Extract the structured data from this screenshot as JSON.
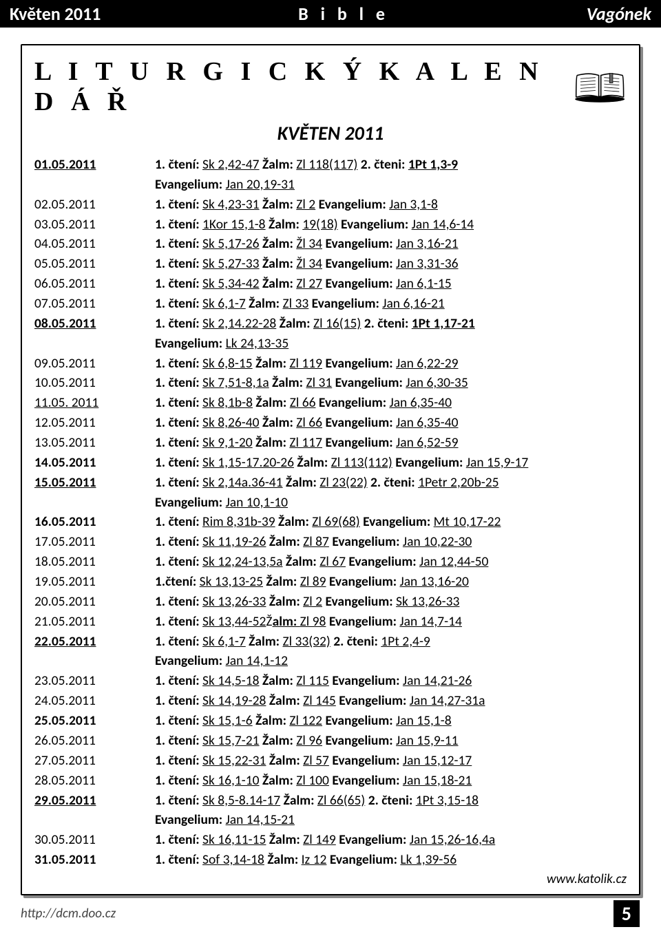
{
  "header": {
    "left": "Květen  2011",
    "center": "B i b l e",
    "right": "Vagónek"
  },
  "title": "L I T U R G I C K Ý   K A L E N D Á Ř",
  "subtitle": "KVĚTEN 2011",
  "source": "www.katolik.cz",
  "footer": {
    "url": "http://dcm.doo.cz",
    "page": "5"
  },
  "entries": [
    {
      "date": "01.05.2011",
      "bold": true,
      "under": true,
      "parts": [
        [
          "b",
          "1. čtení: "
        ],
        [
          "u",
          "Sk 2,42-47"
        ],
        [
          "b",
          " Žalm: "
        ],
        [
          "u",
          "Zl 118(117)"
        ],
        [
          "b",
          " 2. čteni: "
        ],
        [
          "bu",
          "1Pt 1,3-9"
        ]
      ],
      "cont": [
        [
          "b",
          "Evangelium: "
        ],
        [
          "u",
          "Jan 20,19-31"
        ]
      ]
    },
    {
      "date": "02.05.2011",
      "parts": [
        [
          "b",
          "1. čtení: "
        ],
        [
          "u",
          "Sk 4,23-31"
        ],
        [
          "b",
          " Žalm: "
        ],
        [
          "u",
          "Zl 2"
        ],
        [
          "b",
          " Evangelium: "
        ],
        [
          "u",
          "Jan 3,1-8"
        ]
      ]
    },
    {
      "date": "03.05.2011",
      "parts": [
        [
          "b",
          "1. čtení: "
        ],
        [
          "u",
          "1Kor 15,1-8"
        ],
        [
          "b",
          " Žalm: "
        ],
        [
          "u",
          "19(18)"
        ],
        [
          "b",
          " Evangelium: "
        ],
        [
          "u",
          "Jan 14,6-14"
        ]
      ]
    },
    {
      "date": "04.05.2011",
      "parts": [
        [
          "b",
          "1. čtení: "
        ],
        [
          "u",
          "Sk 5,17-26"
        ],
        [
          "b",
          " Žalm: "
        ],
        [
          "u",
          "Žl 34"
        ],
        [
          "b",
          " Evangelium: "
        ],
        [
          "u",
          "Jan 3,16-21"
        ]
      ]
    },
    {
      "date": "05.05.2011",
      "parts": [
        [
          "b",
          "1. čtení: "
        ],
        [
          "u",
          "Sk 5,27-33"
        ],
        [
          "b",
          " Žalm: "
        ],
        [
          "u",
          "Žl 34"
        ],
        [
          "b",
          " Evangelium: "
        ],
        [
          "u",
          "Jan 3,31-36"
        ]
      ]
    },
    {
      "date": "06.05.2011",
      "parts": [
        [
          "b",
          "1. čtení: "
        ],
        [
          "u",
          "Sk 5,34-42"
        ],
        [
          "b",
          " Žalm: "
        ],
        [
          "u",
          "Zl 27"
        ],
        [
          "b",
          " Evangelium: "
        ],
        [
          "u",
          "Jan 6,1-15"
        ]
      ]
    },
    {
      "date": "07.05.2011",
      "parts": [
        [
          "b",
          "1. čtení: "
        ],
        [
          "u",
          "Sk 6,1-7"
        ],
        [
          "b",
          " Žalm: "
        ],
        [
          "u",
          "Zl 33"
        ],
        [
          "b",
          " Evangelium: "
        ],
        [
          "u",
          "Jan 6,16-21"
        ]
      ]
    },
    {
      "date": "08.05.2011",
      "bold": true,
      "under": true,
      "parts": [
        [
          "b",
          "1. čtení: "
        ],
        [
          "u",
          "Sk 2,14.22-28"
        ],
        [
          "b",
          " Žalm: "
        ],
        [
          "u",
          "Zl 16(15)"
        ],
        [
          "b",
          " 2. čteni: "
        ],
        [
          "bu",
          "1Pt 1,17-21"
        ]
      ],
      "cont": [
        [
          "b",
          "Evangelium: "
        ],
        [
          "u",
          "Lk 24,13-35"
        ]
      ]
    },
    {
      "date": "09.05.2011",
      "parts": [
        [
          "b",
          "1. čtení: "
        ],
        [
          "u",
          "Sk 6,8-15"
        ],
        [
          "b",
          " Žalm: "
        ],
        [
          "u",
          "Zl 119"
        ],
        [
          "b",
          " Evangelium: "
        ],
        [
          "u",
          "Jan 6,22-29"
        ]
      ]
    },
    {
      "date": "10.05.2011",
      "parts": [
        [
          "b",
          "1. čtení: "
        ],
        [
          "u",
          "Sk 7,51-8,1a"
        ],
        [
          "b",
          " Žalm: "
        ],
        [
          "u",
          "Zl 31"
        ],
        [
          "b",
          " Evangelium: "
        ],
        [
          "u",
          "Jan 6,30-35"
        ]
      ]
    },
    {
      "date": "11.05. 2011",
      "under": true,
      "parts": [
        [
          "b",
          "1. čtení: "
        ],
        [
          "u",
          "Sk 8,1b-8"
        ],
        [
          "b",
          " Žalm: "
        ],
        [
          "u",
          "Zl 66"
        ],
        [
          "b",
          " Evangelium: "
        ],
        [
          "u",
          " Jan 6,35-40"
        ]
      ]
    },
    {
      "date": "12.05.2011",
      "parts": [
        [
          "b",
          "1. čtení: "
        ],
        [
          "u",
          "Sk 8,26-40"
        ],
        [
          "b",
          " Žalm: "
        ],
        [
          "u",
          "Zl 66"
        ],
        [
          "b",
          " Evangelium: "
        ],
        [
          "u",
          "Jan 6,35-40"
        ]
      ]
    },
    {
      "date": "13.05.2011",
      "parts": [
        [
          "b",
          "1. čtení: "
        ],
        [
          "u",
          "Sk 9,1-20"
        ],
        [
          "b",
          " Žalm: "
        ],
        [
          "u",
          "Zl 117"
        ],
        [
          "b",
          " Evangelium: "
        ],
        [
          "u",
          "Jan 6,52-59"
        ]
      ]
    },
    {
      "date": "14.05.2011",
      "bold": true,
      "parts": [
        [
          "b",
          "1. čtení: "
        ],
        [
          "u",
          "Sk 1,15-17.20-26"
        ],
        [
          "b",
          " Žalm: "
        ],
        [
          "u",
          "Zl 113(112)"
        ],
        [
          "b",
          " Evangelium: "
        ],
        [
          "u",
          "Jan 15,9-17"
        ]
      ]
    },
    {
      "date": "15.05.2011",
      "bold": true,
      "under": true,
      "parts": [
        [
          "b",
          "1. čtení: "
        ],
        [
          "u",
          "Sk 2,14a.36-41"
        ],
        [
          "b",
          " Žalm: "
        ],
        [
          "u",
          "Zl 23(22)"
        ],
        [
          "b",
          " 2. čteni: "
        ],
        [
          "u",
          "1Petr 2,20b-25"
        ]
      ],
      "cont": [
        [
          "b",
          "Evangelium: "
        ],
        [
          "u",
          "Jan 10,1-10"
        ]
      ]
    },
    {
      "date": "16.05.2011",
      "bold": true,
      "parts": [
        [
          "b",
          "1. čtení: "
        ],
        [
          "u",
          "Rim 8,31b-39"
        ],
        [
          "b",
          " Žalm: "
        ],
        [
          "u",
          "Zl 69(68)"
        ],
        [
          "b",
          " Evangelium: "
        ],
        [
          "u",
          "Mt 10,17-22"
        ]
      ]
    },
    {
      "date": "17.05.2011",
      "parts": [
        [
          "b",
          "1. čtení: "
        ],
        [
          "u",
          "Sk 11,19-26"
        ],
        [
          "b",
          " Žalm: "
        ],
        [
          "u",
          "Zl 87"
        ],
        [
          "b",
          " Evangelium: "
        ],
        [
          "u",
          "Jan 10,22-30"
        ]
      ]
    },
    {
      "date": "18.05.2011",
      "parts": [
        [
          "b",
          "1. čtení: "
        ],
        [
          "u",
          "Sk 12,24-13,5a"
        ],
        [
          "b",
          " Žalm: "
        ],
        [
          "u",
          "Zl 67"
        ],
        [
          "b",
          " Evangelium: "
        ],
        [
          "u",
          "Jan 12,44-50"
        ]
      ]
    },
    {
      "date": "19.05.2011",
      "parts": [
        [
          "b",
          "1.čtení: "
        ],
        [
          "u",
          "Sk 13,13-25"
        ],
        [
          "b",
          " Žalm: "
        ],
        [
          "u",
          "Zl 89"
        ],
        [
          "b",
          " Evangelium: "
        ],
        [
          "u",
          "Jan 13,16-20"
        ]
      ]
    },
    {
      "date": "20.05.2011",
      "parts": [
        [
          "b",
          "1. čtení: "
        ],
        [
          "u",
          "Sk 13,26-33"
        ],
        [
          "b",
          " Žalm: "
        ],
        [
          "u",
          "Zl 2"
        ],
        [
          "b",
          " Evangelium: "
        ],
        [
          "u",
          "Sk 13,26-33"
        ]
      ]
    },
    {
      "date": "21.05.2011",
      "parts": [
        [
          "b",
          "1. čtení: "
        ],
        [
          "u",
          "Sk 13,44-52"
        ],
        [
          "",
          "Ž"
        ],
        [
          "bu",
          "alm: "
        ],
        [
          "u",
          "Zl 98"
        ],
        [
          "b",
          " Evangelium: "
        ],
        [
          "u",
          "Jan 14,7-14"
        ]
      ]
    },
    {
      "date": "22.05.2011",
      "bold": true,
      "under": true,
      "parts": [
        [
          "b",
          "1. čtení: "
        ],
        [
          "u",
          "Sk 6,1-7"
        ],
        [
          "b",
          " Žalm: "
        ],
        [
          "u",
          "Zl 33(32)"
        ],
        [
          "b",
          " 2. čteni: "
        ],
        [
          "u",
          "1Pt 2,4-9"
        ]
      ],
      "cont": [
        [
          "b",
          "Evangelium: "
        ],
        [
          "u",
          "Jan 14,1-12"
        ]
      ]
    },
    {
      "date": "23.05.2011",
      "parts": [
        [
          "b",
          "1. čtení: "
        ],
        [
          "u",
          "Sk 14,5-18"
        ],
        [
          "b",
          " Žalm: "
        ],
        [
          "u",
          "Zl 115"
        ],
        [
          "b",
          " Evangelium: "
        ],
        [
          "u",
          "Jan 14,21-26"
        ]
      ]
    },
    {
      "date": "24.05.2011",
      "parts": [
        [
          "b",
          "1. čtení: "
        ],
        [
          "u",
          "Sk 14,19-28"
        ],
        [
          "b",
          " Žalm: "
        ],
        [
          "u",
          "Zl 145"
        ],
        [
          "b",
          " Evangelium: "
        ],
        [
          "u",
          "Jan 14,27-31a"
        ]
      ]
    },
    {
      "date": "25.05.2011",
      "bold": true,
      "parts": [
        [
          "b",
          "1. čtení: "
        ],
        [
          "u",
          "Sk 15,1-6"
        ],
        [
          "b",
          " Žalm: "
        ],
        [
          "u",
          "Zl 122"
        ],
        [
          "b",
          " Evangelium: "
        ],
        [
          "u",
          "Jan 15,1-8"
        ]
      ]
    },
    {
      "date": "26.05.2011",
      "parts": [
        [
          "b",
          "1. čtení: "
        ],
        [
          "u",
          "Sk 15,7-21"
        ],
        [
          "b",
          " Žalm: "
        ],
        [
          "u",
          "Zl 96"
        ],
        [
          "b",
          " Evangelium: "
        ],
        [
          "u",
          "Jan 15,9-11"
        ]
      ]
    },
    {
      "date": "27.05.2011",
      "parts": [
        [
          "b",
          "1. čtení: "
        ],
        [
          "u",
          "Sk 15,22-31"
        ],
        [
          "b",
          " Žalm: "
        ],
        [
          "u",
          "Zl 57"
        ],
        [
          "b",
          " Evangelium: "
        ],
        [
          "u",
          "Jan 15,12-17"
        ]
      ]
    },
    {
      "date": "28.05.2011",
      "parts": [
        [
          "b",
          "1. čtení: "
        ],
        [
          "u",
          "Sk 16,1-10"
        ],
        [
          "b",
          " Žalm: "
        ],
        [
          "u",
          "Zl 100"
        ],
        [
          "b",
          " Evangelium: "
        ],
        [
          "u",
          "Jan 15,18-21"
        ]
      ]
    },
    {
      "date": "29.05.2011",
      "bold": true,
      "under": true,
      "parts": [
        [
          "b",
          "1. čtení: "
        ],
        [
          "u",
          "Sk 8,5-8.14-17"
        ],
        [
          "b",
          " Žalm: "
        ],
        [
          "u",
          "Zl 66(65)"
        ],
        [
          "b",
          " 2. čteni: "
        ],
        [
          "u",
          "1Pt 3,15-18"
        ]
      ],
      "cont": [
        [
          "b",
          "Evangelium: "
        ],
        [
          "u",
          "Jan 14,15-21"
        ]
      ]
    },
    {
      "date": "30.05.2011",
      "parts": [
        [
          "b",
          "1. čtení: "
        ],
        [
          "u",
          "Sk 16,11-15"
        ],
        [
          "b",
          " Žalm: "
        ],
        [
          "u",
          "Zl 149"
        ],
        [
          "b",
          " Evangelium: "
        ],
        [
          "u",
          "Jan 15,26-16,4a"
        ]
      ]
    },
    {
      "date": "31.05.2011",
      "bold": true,
      "parts": [
        [
          "b",
          "1. čtení: "
        ],
        [
          "u",
          "Sof 3,14-18"
        ],
        [
          "b",
          " Žalm: "
        ],
        [
          "u",
          "Iz 12"
        ],
        [
          "b",
          " Evangelium: "
        ],
        [
          "u",
          "Lk 1,39-56"
        ]
      ]
    }
  ]
}
